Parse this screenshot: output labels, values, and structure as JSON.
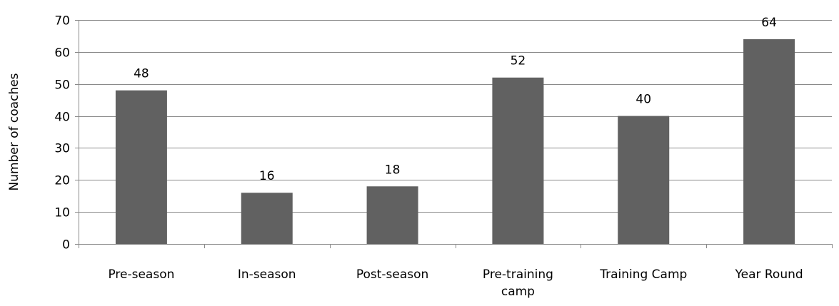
{
  "colors": {
    "bar": "#616161",
    "grid": "#8a8a8a",
    "axis": "#8a8a8a",
    "text": "#000000"
  },
  "chart_data": {
    "type": "bar",
    "title": "",
    "xlabel": "",
    "ylabel": "Number of coaches",
    "categories": [
      "Pre-season",
      "In-season",
      "Post-season",
      "Pre-training camp",
      "Training Camp",
      "Year Round"
    ],
    "category_lines": [
      [
        "Pre-season"
      ],
      [
        "In-season"
      ],
      [
        "Post-season"
      ],
      [
        "Pre-training",
        "camp"
      ],
      [
        "Training Camp"
      ],
      [
        "Year Round"
      ]
    ],
    "values": [
      48,
      16,
      18,
      52,
      40,
      64
    ],
    "data_labels": [
      "48",
      "16",
      "18",
      "52",
      "40",
      "64"
    ],
    "ylim": [
      0,
      70
    ],
    "yticks": [
      0,
      10,
      20,
      30,
      40,
      50,
      60,
      70
    ],
    "grid": true,
    "legend": "none"
  }
}
